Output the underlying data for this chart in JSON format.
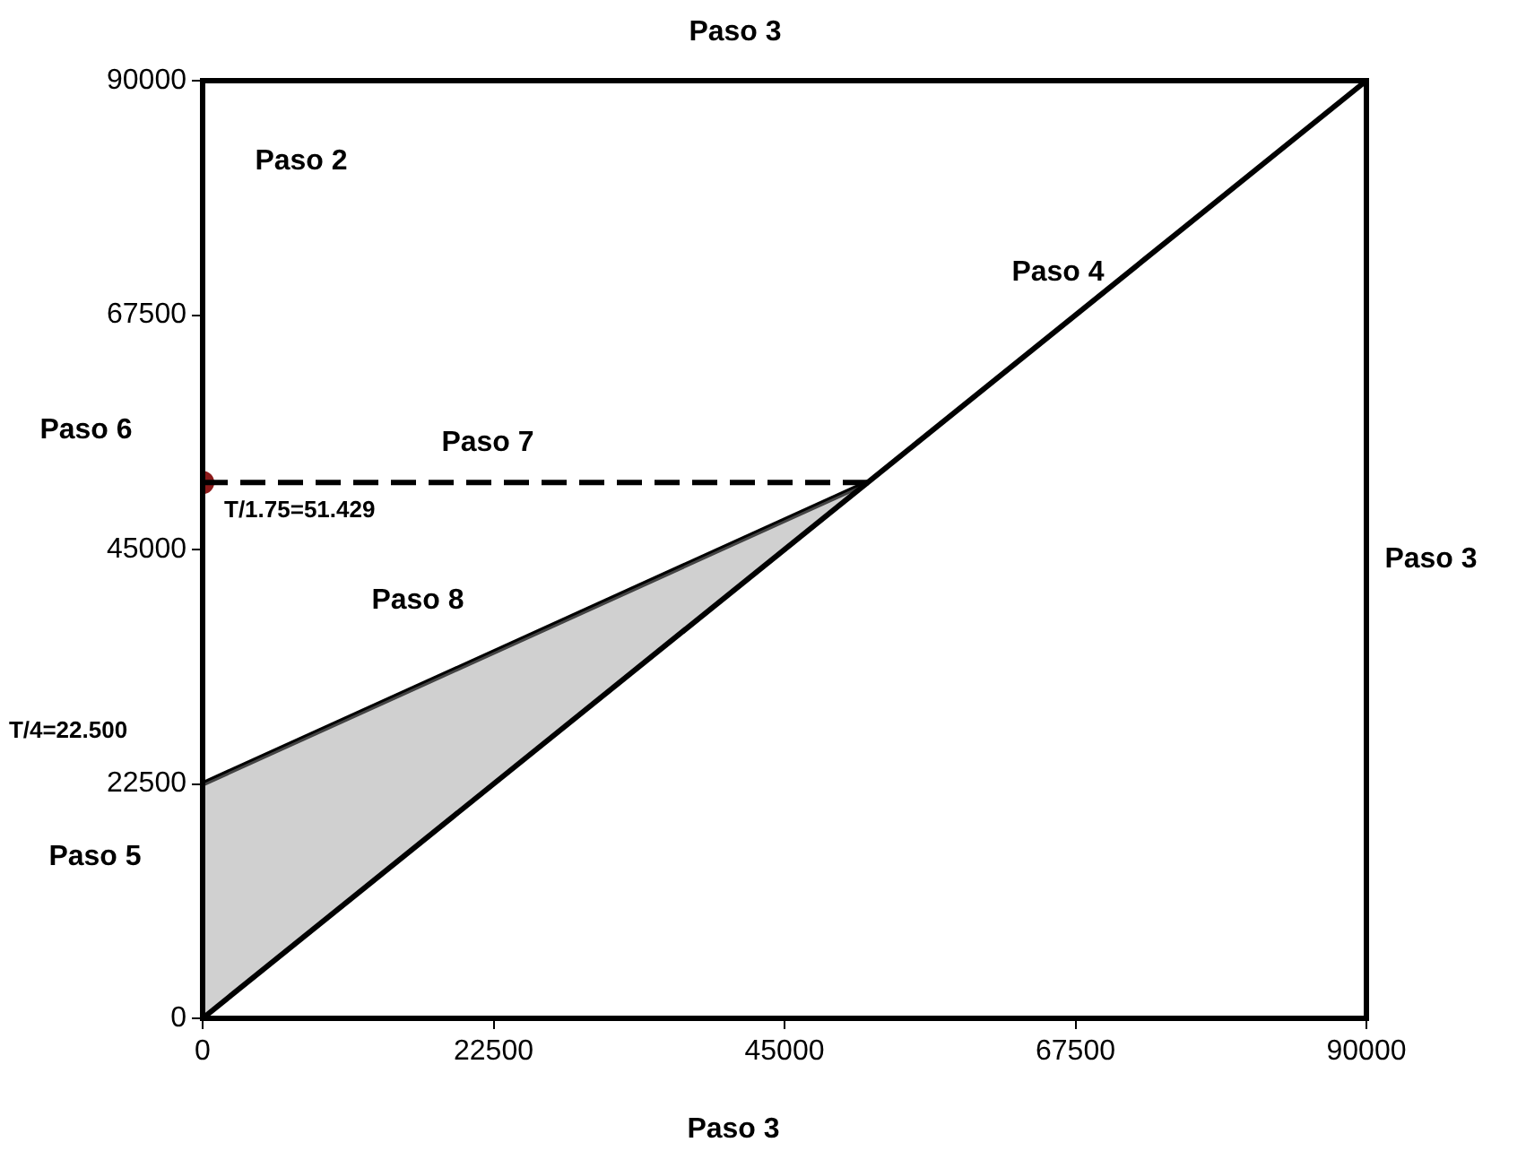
{
  "chart_data": {
    "type": "line",
    "xlim": [
      0,
      90000
    ],
    "ylim": [
      0,
      90000
    ],
    "xticks": [
      0,
      22500,
      45000,
      67500,
      90000
    ],
    "yticks": [
      0,
      22500,
      45000,
      67500,
      90000
    ],
    "grid": false,
    "legend": false,
    "series": [
      {
        "color": "#000000",
        "x": [
          0,
          90000
        ],
        "values": [
          0,
          90000
        ]
      },
      {
        "color": "#000000",
        "x": [
          0,
          51429
        ],
        "values": [
          22500,
          51429
        ],
        "lower": [
          0,
          51429
        ],
        "upper": [
          22500,
          51429
        ]
      },
      {
        "color": "#000000",
        "x": [
          0,
          51429
        ],
        "values": [
          51429,
          51429
        ],
        "line_style": "dashed"
      },
      {
        "type": "scatter",
        "color": "#8b1a1a",
        "x": [
          0
        ],
        "values": [
          51429
        ],
        "marker": "circle"
      }
    ],
    "annotations": [
      "Paso 3",
      "Paso 2",
      "Paso 4",
      "Paso 6",
      "Paso 7",
      "Paso 8",
      "Paso 3",
      "Paso 5",
      "Paso 3",
      "T/4=22.500",
      {
        "text": "T/1.75=51.429",
        "x": 0,
        "y": 51429
      }
    ]
  }
}
